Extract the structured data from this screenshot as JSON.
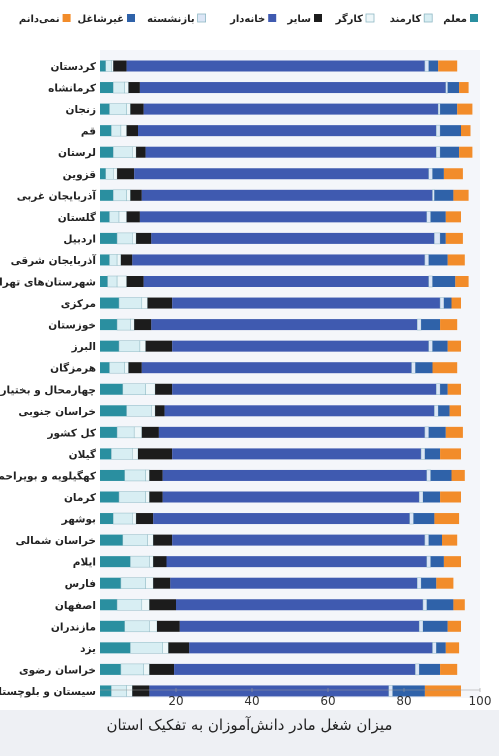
{
  "chart_data": {
    "type": "bar",
    "stacked": true,
    "orientation": "horizontal",
    "title": "میزان شغل مادر دانش‌آموزان به تفکیک استان",
    "xlim": [
      0,
      100
    ],
    "xticks": [
      20,
      40,
      60,
      80,
      100
    ],
    "legend_position": "top",
    "categories": [
      "کردستان",
      "کرمانشاه",
      "زنجان",
      "قم",
      "لرستان",
      "قزوین",
      "آذربایجان غربی",
      "گلستان",
      "اردبیل",
      "آذربایجان شرقی",
      "شهرستان‌های تهران",
      "مرکزی",
      "خوزستان",
      "البرز",
      "هرمزگان",
      "چهارمحال و بختیاری",
      "خراسان جنوبی",
      "کل کشور",
      "گیلان",
      "کهگیلویه و بویراحمد",
      "کرمان",
      "بوشهر",
      "خراسان شمالی",
      "ایلام",
      "فارس",
      "اصفهان",
      "مازندران",
      "یزد",
      "خراسان رضوی",
      "سیستان و بلوچستان"
    ],
    "series": [
      {
        "name": "معلم",
        "color": "#2a8fa0",
        "values": [
          1.5,
          3.5,
          2.5,
          3.0,
          3.5,
          1.5,
          3.5,
          2.5,
          4.5,
          2.5,
          2.0,
          5.0,
          4.5,
          5.0,
          2.5,
          6.0,
          7.0,
          4.5,
          3.0,
          6.5,
          5.0,
          3.5,
          6.0,
          8.0,
          5.5,
          4.5,
          6.5,
          8.0,
          5.5,
          3.0
        ]
      },
      {
        "name": "کارمند",
        "color": "#d8eef3",
        "values": [
          1.5,
          3.0,
          4.5,
          2.5,
          5.0,
          2.0,
          3.5,
          2.5,
          4.0,
          2.0,
          2.5,
          6.0,
          3.5,
          5.5,
          4.0,
          6.0,
          6.5,
          4.5,
          5.5,
          5.5,
          7.0,
          5.0,
          6.5,
          5.0,
          6.5,
          6.5,
          6.5,
          8.5,
          6.0,
          4.0
        ]
      },
      {
        "name": "کارگر",
        "color": "#eef7f9",
        "values": [
          0.5,
          1.0,
          1.0,
          1.5,
          1.0,
          1.0,
          1.0,
          2.0,
          1.0,
          1.0,
          2.5,
          1.5,
          1.0,
          1.5,
          1.0,
          2.5,
          1.0,
          2.0,
          1.5,
          1.0,
          1.0,
          1.0,
          1.5,
          1.0,
          2.0,
          2.0,
          2.0,
          1.5,
          1.5,
          1.5
        ]
      },
      {
        "name": "سایر",
        "color": "#1c1c1c",
        "values": [
          3.5,
          3.0,
          3.5,
          3.0,
          2.5,
          4.5,
          3.0,
          3.5,
          4.0,
          3.0,
          4.5,
          6.5,
          4.5,
          7.0,
          3.5,
          4.5,
          2.5,
          4.5,
          9.0,
          3.5,
          3.5,
          4.5,
          5.0,
          3.5,
          4.5,
          7.0,
          6.0,
          5.5,
          6.5,
          4.5
        ]
      },
      {
        "name": "خانه‌دار",
        "color": "#3f5ab0",
        "values": [
          78.5,
          80.5,
          77.5,
          78.5,
          76.5,
          77.5,
          76.5,
          75.5,
          74.5,
          77.0,
          75.0,
          70.5,
          70.0,
          67.5,
          71.0,
          69.5,
          71.0,
          70.0,
          65.5,
          69.5,
          67.5,
          67.5,
          66.5,
          68.5,
          65.0,
          65.0,
          63.0,
          64.0,
          63.5,
          63.0
        ]
      },
      {
        "name": "بازنشسته",
        "color": "#dce6f6",
        "values": [
          1.0,
          0.5,
          0.5,
          1.0,
          1.0,
          1.0,
          0.5,
          1.0,
          1.5,
          1.0,
          1.0,
          1.0,
          1.0,
          1.0,
          1.0,
          1.0,
          1.0,
          1.0,
          1.0,
          1.0,
          1.0,
          1.0,
          1.0,
          1.0,
          1.0,
          1.0,
          1.0,
          1.0,
          1.0,
          1.0
        ]
      },
      {
        "name": "غیرشاغل",
        "color": "#2f62a9",
        "values": [
          2.5,
          3.0,
          4.5,
          5.5,
          5.0,
          3.0,
          5.0,
          4.0,
          1.5,
          5.0,
          6.0,
          2.0,
          5.0,
          4.0,
          4.5,
          2.0,
          3.0,
          4.5,
          4.0,
          5.5,
          4.5,
          5.5,
          3.5,
          3.5,
          4.0,
          7.0,
          6.5,
          2.5,
          5.5,
          8.5
        ]
      },
      {
        "name": "نمی‌دانم",
        "color": "#f28c2a",
        "values": [
          5.0,
          2.5,
          4.0,
          2.5,
          3.5,
          5.0,
          4.0,
          4.0,
          4.5,
          4.5,
          3.5,
          2.5,
          4.5,
          3.5,
          6.5,
          3.5,
          3.0,
          4.5,
          5.5,
          3.5,
          5.5,
          6.5,
          4.0,
          4.5,
          4.5,
          3.0,
          3.5,
          3.5,
          4.5,
          9.5
        ]
      }
    ]
  }
}
